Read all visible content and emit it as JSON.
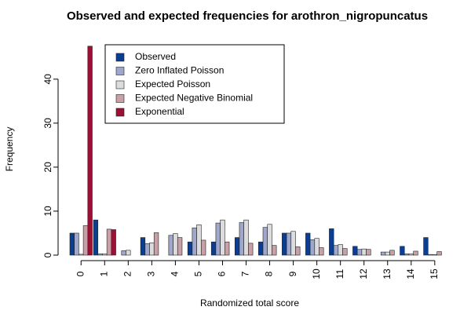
{
  "chart_data": {
    "type": "bar",
    "title": "Observed and expected frequencies for arothron_nigropuncatus",
    "xlabel": "Randomized total score",
    "ylabel": "Frequency",
    "categories": [
      "0",
      "1",
      "2",
      "3",
      "4",
      "5",
      "6",
      "7",
      "8",
      "9",
      "10",
      "11",
      "12",
      "13",
      "14",
      "15"
    ],
    "ylim": [
      0,
      48
    ],
    "yticks": [
      0,
      10,
      20,
      30,
      40
    ],
    "legend_position": "top-center",
    "grid": false,
    "series": [
      {
        "name": "Observed",
        "color": "#0b3d91",
        "values": [
          5,
          8,
          0,
          4,
          0,
          3,
          3,
          4,
          3,
          5,
          5,
          6,
          2,
          0,
          2,
          4
        ]
      },
      {
        "name": "Zero Inflated Poisson",
        "color": "#9fa8cc",
        "values": [
          5,
          0.3,
          1,
          2.6,
          4.5,
          6.2,
          7.3,
          7.4,
          6.3,
          5,
          3.5,
          2.2,
          1.3,
          0.7,
          0.3,
          0.15
        ]
      },
      {
        "name": "Expected Poisson",
        "color": "#dcdcdc",
        "values": [
          0.2,
          0.3,
          1.1,
          2.8,
          4.9,
          6.9,
          8.0,
          8.0,
          7.0,
          5.4,
          3.8,
          2.4,
          1.4,
          0.7,
          0.3,
          0.1
        ]
      },
      {
        "name": "Expected Negative Binomial",
        "color": "#c9a0a6",
        "values": [
          6.7,
          5.9,
          0,
          5.1,
          4.0,
          3.4,
          3.0,
          2.7,
          2.2,
          1.9,
          1.7,
          1.5,
          1.3,
          1.1,
          0.9,
          0.8
        ]
      },
      {
        "name": "Exponential",
        "color": "#9b1035",
        "values": [
          47.5,
          5.8,
          0,
          0,
          0,
          0,
          0,
          0,
          0,
          0,
          0,
          0,
          0,
          0,
          0,
          0
        ]
      }
    ]
  }
}
